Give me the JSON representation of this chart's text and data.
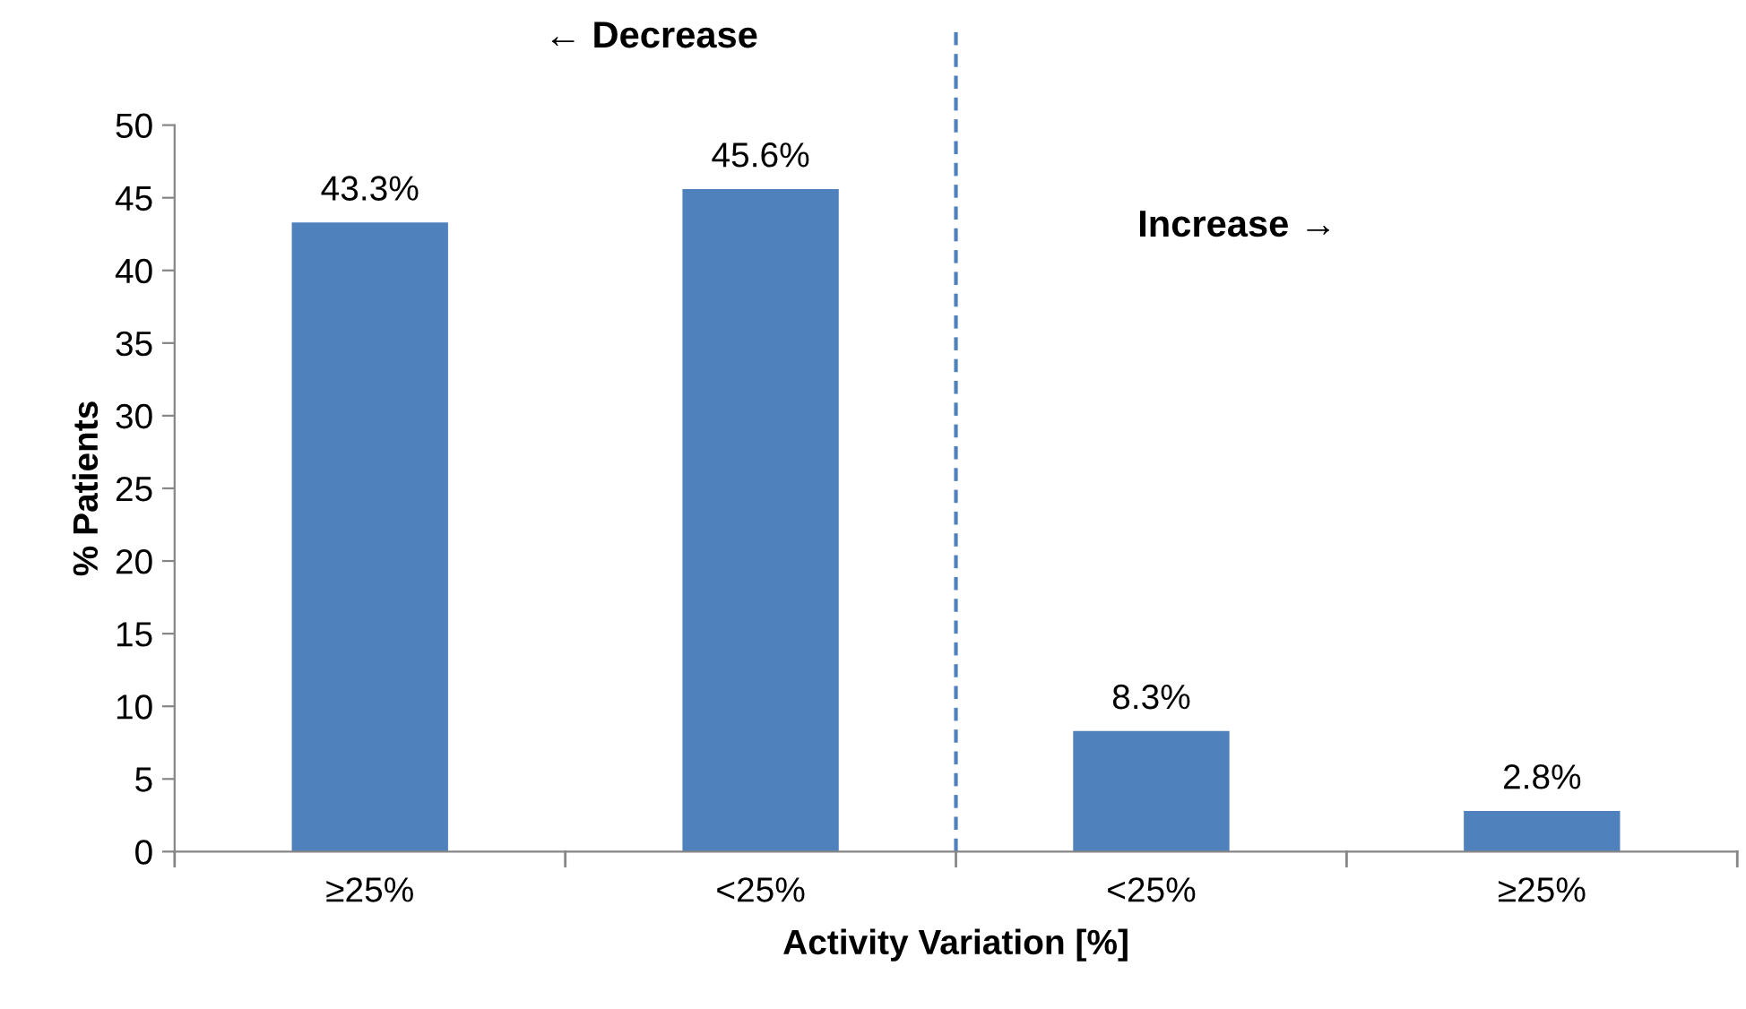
{
  "chart_data": {
    "type": "bar",
    "xlabel": "Activity Variation [%]",
    "ylabel": "% Patients",
    "categories": [
      "≥25%",
      "<25%",
      "<25%",
      "≥25%"
    ],
    "values": [
      43.3,
      45.6,
      8.3,
      2.8
    ],
    "value_labels": [
      "43.3%",
      "45.6%",
      "8.3%",
      "2.8%"
    ],
    "color": "#4f81bd",
    "ylim": [
      0,
      50
    ],
    "yticks": [
      0,
      5,
      10,
      15,
      20,
      25,
      30,
      35,
      40,
      45,
      50
    ],
    "grid": false,
    "legend": false,
    "annotations": [
      "← Decrease",
      "Increase →"
    ]
  }
}
